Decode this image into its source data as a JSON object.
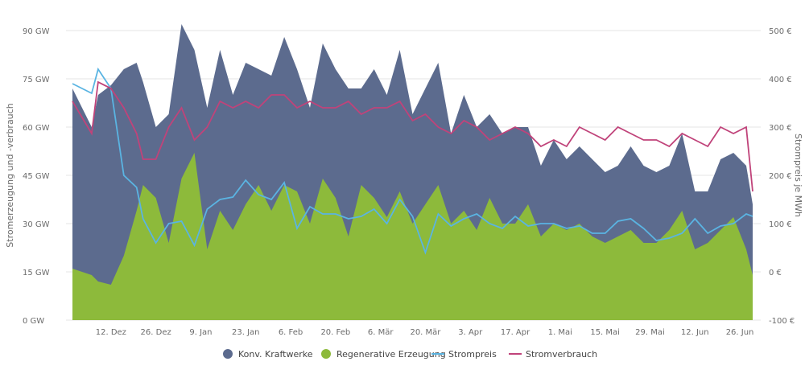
{
  "chart_data": {
    "type": "area",
    "title": "",
    "xlabel": "",
    "ylabel": "Stromerzeugung und -verbrauch",
    "y2label": "Strompreis je MWh",
    "ylim": [
      0,
      90
    ],
    "y2lim": [
      -100,
      500
    ],
    "y_ticks": [
      "0 GW",
      "15 GW",
      "30 GW",
      "45 GW",
      "60 GW",
      "75 GW",
      "90 GW"
    ],
    "y2_ticks": [
      "-100 €",
      "0 €",
      "100 €",
      "200 €",
      "300 €",
      "400 €",
      "500 €"
    ],
    "x_ticks": [
      {
        "label": "12. Dez",
        "day": 12
      },
      {
        "label": "26. Dez",
        "day": 26
      },
      {
        "label": "9. Jan",
        "day": 40
      },
      {
        "label": "23. Jan",
        "day": 54
      },
      {
        "label": "6. Feb",
        "day": 68
      },
      {
        "label": "20. Feb",
        "day": 82
      },
      {
        "label": "6. Mär",
        "day": 96
      },
      {
        "label": "20. Mär",
        "day": 110
      },
      {
        "label": "3. Apr",
        "day": 124
      },
      {
        "label": "17. Apr",
        "day": 138
      },
      {
        "label": "1. Mai",
        "day": 152
      },
      {
        "label": "15. Mai",
        "day": 166
      },
      {
        "label": "29. Mai",
        "day": 180
      },
      {
        "label": "12. Jun",
        "day": 194
      },
      {
        "label": "26. Jun",
        "day": 208
      }
    ],
    "x_domain": [
      0,
      212
    ],
    "legend_position": "bottom-center",
    "series": [
      {
        "name": "Konv. Kraftwerke",
        "kind": "stacked-area",
        "color": "#5c6b8e",
        "x": [
          0,
          6,
          8,
          12,
          16,
          20,
          22,
          26,
          30,
          34,
          38,
          42,
          46,
          50,
          54,
          58,
          62,
          66,
          70,
          74,
          78,
          82,
          86,
          90,
          94,
          98,
          102,
          106,
          110,
          114,
          118,
          122,
          126,
          130,
          134,
          138,
          142,
          146,
          150,
          154,
          158,
          162,
          166,
          170,
          174,
          178,
          182,
          186,
          190,
          194,
          198,
          202,
          206,
          210,
          212
        ],
        "values": [
          56,
          46,
          58,
          62,
          58,
          46,
          32,
          22,
          40,
          48,
          32,
          44,
          50,
          42,
          44,
          36,
          42,
          46,
          38,
          36,
          42,
          40,
          46,
          30,
          40,
          38,
          44,
          34,
          36,
          38,
          28,
          36,
          32,
          26,
          28,
          30,
          24,
          22,
          26,
          22,
          24,
          24,
          22,
          22,
          26,
          24,
          22,
          20,
          24,
          18,
          16,
          22,
          20,
          26,
          22
        ]
      },
      {
        "name": "Regenerative Erzeugung",
        "kind": "area",
        "color": "#8dba3b",
        "x": [
          0,
          6,
          8,
          12,
          16,
          20,
          22,
          26,
          30,
          34,
          38,
          42,
          46,
          50,
          54,
          58,
          62,
          66,
          70,
          74,
          78,
          82,
          86,
          90,
          94,
          98,
          102,
          106,
          110,
          114,
          118,
          122,
          126,
          130,
          134,
          138,
          142,
          146,
          150,
          154,
          158,
          162,
          166,
          170,
          174,
          178,
          182,
          186,
          190,
          194,
          198,
          202,
          206,
          210,
          212
        ],
        "values": [
          16,
          14,
          12,
          11,
          20,
          34,
          42,
          38,
          24,
          44,
          52,
          22,
          34,
          28,
          36,
          42,
          34,
          42,
          40,
          30,
          44,
          38,
          26,
          42,
          38,
          32,
          40,
          30,
          36,
          42,
          30,
          34,
          28,
          38,
          30,
          30,
          36,
          26,
          30,
          28,
          30,
          26,
          24,
          26,
          28,
          24,
          24,
          28,
          34,
          22,
          24,
          28,
          32,
          22,
          14
        ]
      },
      {
        "name": "Strompreis",
        "kind": "line",
        "color": "#5ab4e2",
        "axis": "right",
        "x": [
          0,
          6,
          8,
          12,
          16,
          20,
          22,
          26,
          30,
          34,
          38,
          42,
          46,
          50,
          54,
          58,
          62,
          66,
          70,
          74,
          78,
          82,
          86,
          90,
          94,
          98,
          102,
          106,
          110,
          114,
          118,
          122,
          126,
          130,
          134,
          138,
          142,
          146,
          150,
          154,
          158,
          162,
          166,
          170,
          174,
          178,
          182,
          186,
          190,
          194,
          198,
          202,
          206,
          210,
          212
        ],
        "values": [
          390,
          370,
          420,
          380,
          200,
          175,
          110,
          60,
          100,
          105,
          55,
          130,
          150,
          155,
          190,
          160,
          150,
          185,
          90,
          135,
          120,
          120,
          110,
          115,
          130,
          100,
          150,
          115,
          40,
          120,
          95,
          110,
          120,
          100,
          90,
          115,
          95,
          100,
          100,
          90,
          95,
          80,
          80,
          105,
          110,
          90,
          65,
          70,
          80,
          110,
          80,
          95,
          100,
          120,
          115
        ]
      },
      {
        "name": "Stromverbrauch",
        "kind": "line",
        "color": "#c0437a",
        "x": [
          0,
          6,
          8,
          12,
          16,
          20,
          22,
          26,
          30,
          34,
          38,
          42,
          46,
          50,
          54,
          58,
          62,
          66,
          70,
          74,
          78,
          82,
          86,
          90,
          94,
          98,
          102,
          106,
          110,
          114,
          118,
          122,
          126,
          130,
          134,
          138,
          142,
          146,
          150,
          154,
          158,
          162,
          166,
          170,
          174,
          178,
          182,
          186,
          190,
          194,
          198,
          202,
          206,
          210,
          212
        ],
        "values": [
          68,
          58,
          74,
          72,
          66,
          58,
          50,
          50,
          60,
          66,
          56,
          60,
          68,
          66,
          68,
          66,
          70,
          70,
          66,
          68,
          66,
          66,
          68,
          64,
          66,
          66,
          68,
          62,
          64,
          60,
          58,
          62,
          60,
          56,
          58,
          60,
          58,
          54,
          56,
          54,
          60,
          58,
          56,
          60,
          58,
          56,
          56,
          54,
          58,
          56,
          54,
          60,
          58,
          60,
          40
        ]
      }
    ]
  }
}
